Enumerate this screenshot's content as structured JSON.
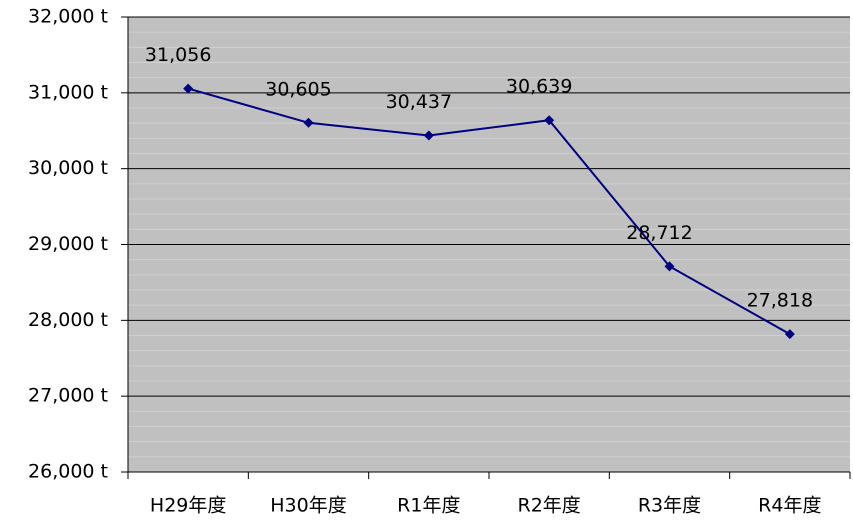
{
  "chart_data": {
    "type": "line",
    "categories": [
      "H29年度",
      "H30年度",
      "R1年度",
      "R2年度",
      "R3年度",
      "R4年度"
    ],
    "series": [
      {
        "color": "#000080",
        "values": [
          31056,
          30605,
          30437,
          30639,
          28712,
          27818
        ],
        "value_labels": [
          "31,056",
          "30,605",
          "30,437",
          "30,639",
          "28,712",
          "27,818"
        ]
      }
    ],
    "ylim": [
      26000,
      32000
    ],
    "yticks": [
      {
        "value": 26000,
        "label": "26,000 t"
      },
      {
        "value": 27000,
        "label": "27,000 t"
      },
      {
        "value": 28000,
        "label": "28,000 t"
      },
      {
        "value": 29000,
        "label": "29,000 t"
      },
      {
        "value": 30000,
        "label": "30,000 t"
      },
      {
        "value": 31000,
        "label": "31,000 t"
      },
      {
        "value": 32000,
        "label": "32,000 t"
      }
    ],
    "grid": true
  }
}
